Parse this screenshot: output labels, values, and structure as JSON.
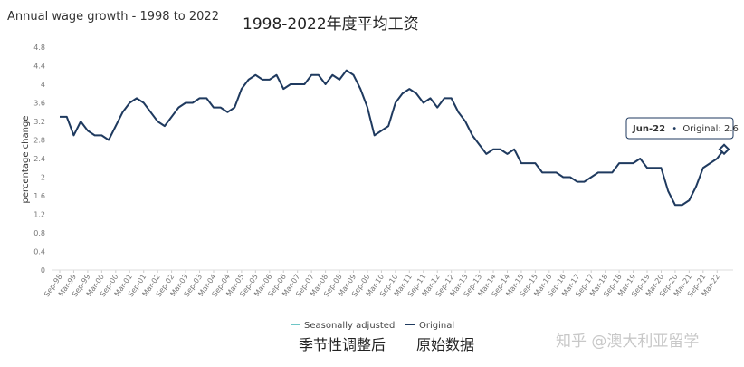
{
  "chart_data": {
    "type": "line",
    "title": "Annual wage growth - 1998 to 2022",
    "subtitle_cn": "1998-2022年度平均工资",
    "ylabel": "percentage change",
    "ylim": [
      0,
      4.8
    ],
    "yticks": [
      "0",
      "0.4",
      "0.8",
      "1.2",
      "1.6",
      "2",
      "2.4",
      "2.8",
      "3.2",
      "3.6",
      "4",
      "4.4",
      "4.8"
    ],
    "x": [
      "Sep-98",
      "Dec-98",
      "Mar-99",
      "Jun-99",
      "Sep-99",
      "Dec-99",
      "Mar-00",
      "Jun-00",
      "Sep-00",
      "Dec-00",
      "Mar-01",
      "Jun-01",
      "Sep-01",
      "Dec-01",
      "Mar-02",
      "Jun-02",
      "Sep-02",
      "Dec-02",
      "Mar-03",
      "Jun-03",
      "Sep-03",
      "Dec-03",
      "Mar-04",
      "Jun-04",
      "Sep-04",
      "Dec-04",
      "Mar-05",
      "Jun-05",
      "Sep-05",
      "Dec-05",
      "Mar-06",
      "Jun-06",
      "Sep-06",
      "Dec-06",
      "Mar-07",
      "Jun-07",
      "Sep-07",
      "Dec-07",
      "Mar-08",
      "Jun-08",
      "Sep-08",
      "Dec-08",
      "Mar-09",
      "Jun-09",
      "Sep-09",
      "Dec-09",
      "Mar-10",
      "Jun-10",
      "Sep-10",
      "Dec-10",
      "Mar-11",
      "Jun-11",
      "Sep-11",
      "Dec-11",
      "Mar-12",
      "Jun-12",
      "Sep-12",
      "Dec-12",
      "Mar-13",
      "Jun-13",
      "Sep-13",
      "Dec-13",
      "Mar-14",
      "Jun-14",
      "Sep-14",
      "Dec-14",
      "Mar-15",
      "Jun-15",
      "Sep-15",
      "Dec-15",
      "Mar-16",
      "Jun-16",
      "Sep-16",
      "Dec-16",
      "Mar-17",
      "Jun-17",
      "Sep-17",
      "Dec-17",
      "Mar-18",
      "Jun-18",
      "Sep-18",
      "Dec-18",
      "Mar-19",
      "Jun-19",
      "Sep-19",
      "Dec-19",
      "Mar-20",
      "Jun-20",
      "Sep-20",
      "Dec-20",
      "Mar-21",
      "Jun-21",
      "Sep-21",
      "Dec-21",
      "Mar-22",
      "Jun-22"
    ],
    "xtick_labels": [
      "Sep-98",
      "Mar-99",
      "Sep-99",
      "Mar-00",
      "Sep-00",
      "Mar-01",
      "Sep-01",
      "Mar-02",
      "Sep-02",
      "Mar-03",
      "Sep-03",
      "Mar-04",
      "Sep-04",
      "Mar-05",
      "Sep-05",
      "Mar-06",
      "Sep-06",
      "Mar-07",
      "Sep-07",
      "Mar-08",
      "Sep-08",
      "Mar-09",
      "Sep-09",
      "Mar-10",
      "Sep-10",
      "Mar-11",
      "Sep-11",
      "Mar-12",
      "Sep-12",
      "Mar-13",
      "Sep-13",
      "Mar-14",
      "Sep-14",
      "Mar-15",
      "Sep-15",
      "Mar-16",
      "Sep-16",
      "Mar-17",
      "Sep-17",
      "Mar-18",
      "Sep-18",
      "Mar-19",
      "Sep-19",
      "Mar-20",
      "Sep-20",
      "Mar-21",
      "Sep-21",
      "Mar-22"
    ],
    "series": [
      {
        "name": "Original",
        "color": "#1f3a5f",
        "values": [
          3.3,
          3.3,
          2.9,
          3.2,
          3.0,
          2.9,
          2.9,
          2.8,
          3.1,
          3.4,
          3.6,
          3.7,
          3.6,
          3.4,
          3.2,
          3.1,
          3.3,
          3.5,
          3.6,
          3.6,
          3.7,
          3.7,
          3.5,
          3.5,
          3.4,
          3.5,
          3.9,
          4.1,
          4.2,
          4.1,
          4.1,
          4.2,
          3.9,
          4.0,
          4.0,
          4.0,
          4.2,
          4.2,
          4.0,
          4.2,
          4.1,
          4.3,
          4.2,
          3.9,
          3.5,
          2.9,
          3.0,
          3.1,
          3.6,
          3.8,
          3.9,
          3.8,
          3.6,
          3.7,
          3.5,
          3.7,
          3.7,
          3.4,
          3.2,
          2.9,
          2.7,
          2.5,
          2.6,
          2.6,
          2.5,
          2.6,
          2.3,
          2.3,
          2.3,
          2.1,
          2.1,
          2.1,
          2.0,
          2.0,
          1.9,
          1.9,
          2.0,
          2.1,
          2.1,
          2.1,
          2.3,
          2.3,
          2.3,
          2.4,
          2.2,
          2.2,
          2.2,
          1.7,
          1.4,
          1.4,
          1.5,
          1.8,
          2.2,
          2.3,
          2.4,
          2.6
        ]
      }
    ],
    "legend": [
      {
        "name": "Seasonally adjusted",
        "color": "#6ec6c7"
      },
      {
        "name": "Original",
        "color": "#1f3a5f"
      }
    ],
    "legend_cn": [
      "季节性调整后",
      "原始数据"
    ],
    "tooltip": {
      "date": "Jun-22",
      "label": "Original: 2.6",
      "bullet": "•"
    },
    "grid": false
  },
  "watermark": "知乎 @澳大利亚留学"
}
